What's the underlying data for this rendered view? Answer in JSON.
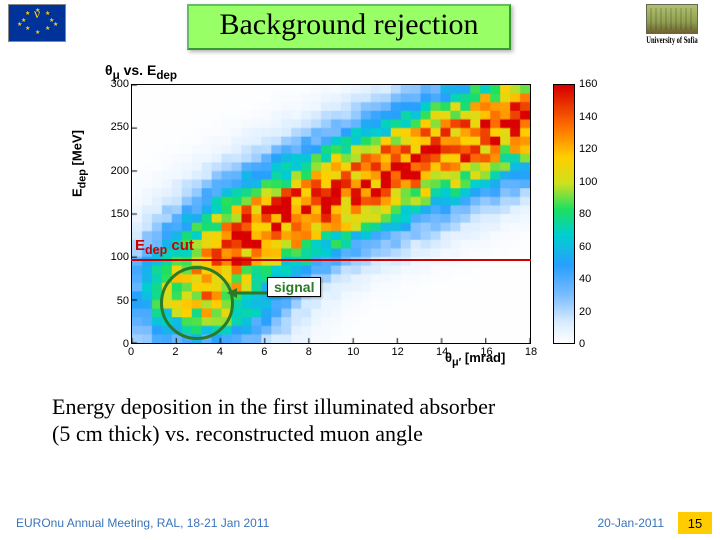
{
  "header": {
    "flag_symbol": "ν",
    "title": "Background rejection",
    "uni_label": "University of Sofia"
  },
  "chart": {
    "title_html": "θμ vs. Eₔₑₚ",
    "ylabel": "Edep [MeV]",
    "xlabel": "θμ′ [mrad]",
    "xlim": [
      0,
      18
    ],
    "ylim": [
      0,
      300
    ],
    "xticks": [
      0,
      2,
      4,
      6,
      8,
      10,
      12,
      14,
      16,
      18
    ],
    "yticks": [
      0,
      50,
      100,
      150,
      200,
      250,
      300
    ],
    "grid_x": 40,
    "grid_y": 30,
    "edep_cut_label": "Edep cut",
    "edep_cut_value": 100,
    "signal_label": "signal",
    "signal_circle_center": [
      3.6,
      40
    ],
    "signal_circle_radius": 40,
    "colorbar": {
      "min": 0,
      "max": 160,
      "ticks": [
        0,
        20,
        40,
        60,
        80,
        100,
        120,
        140,
        160
      ],
      "stops": [
        [
          0.0,
          "#ffffff"
        ],
        [
          0.08,
          "#d8ecff"
        ],
        [
          0.18,
          "#7fbfff"
        ],
        [
          0.3,
          "#29a0ff"
        ],
        [
          0.42,
          "#00d0d0"
        ],
        [
          0.52,
          "#20e060"
        ],
        [
          0.62,
          "#d0e020"
        ],
        [
          0.72,
          "#ffd000"
        ],
        [
          0.84,
          "#ff7000"
        ],
        [
          1.0,
          "#d80000"
        ]
      ]
    },
    "annotation_colors": {
      "cut": "#cc0000",
      "signal": "#2a7a2a"
    }
  },
  "caption": {
    "line1": "Energy deposition in the first illuminated absorber",
    "line2": "(5 cm thick) vs. reconstructed muon angle"
  },
  "footer": {
    "left": "EUROnu Annual Meeting, RAL, 18-21 Jan 2011",
    "date": "20-Jan-2011",
    "page": "15"
  }
}
